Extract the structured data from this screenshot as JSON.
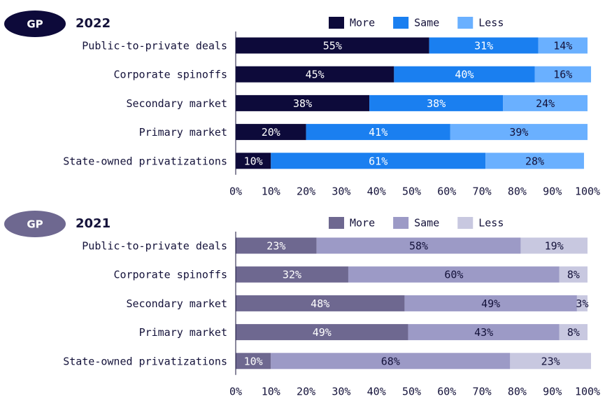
{
  "chart_data": [
    {
      "type": "stacked-bar-horizontal",
      "badge": "GP",
      "title": "2022",
      "badge_color": "#0d0a3a",
      "categories": [
        "Public-to-private deals",
        "Corporate spinoffs",
        "Secondary market",
        "Primary market",
        "State-owned privatizations"
      ],
      "series": [
        {
          "name": "More",
          "color": "#0d0a3a",
          "values": [
            55,
            45,
            38,
            20,
            10
          ],
          "value_labels": [
            "55%",
            "45%",
            "38%",
            "20%",
            "10%"
          ]
        },
        {
          "name": "Same",
          "color": "#1a7ff0",
          "values": [
            31,
            40,
            38,
            41,
            61
          ],
          "value_labels": [
            "31%",
            "40%",
            "38%",
            "41%",
            "61%"
          ]
        },
        {
          "name": "Less",
          "color": "#6ab0ff",
          "values": [
            14,
            16,
            24,
            39,
            28
          ],
          "value_labels": [
            "14%",
            "16%",
            "24%",
            "39%",
            "28%"
          ]
        }
      ],
      "xlim": [
        0,
        100
      ],
      "xticks": [
        {
          "value": 0,
          "label": "0%"
        },
        {
          "value": 10,
          "label": "10%"
        },
        {
          "value": 20,
          "label": "20%"
        },
        {
          "value": 30,
          "label": "30%"
        },
        {
          "value": 40,
          "label": "40%"
        },
        {
          "value": 50,
          "label": "50%"
        },
        {
          "value": 60,
          "label": "60%"
        },
        {
          "value": 70,
          "label": "70%"
        },
        {
          "value": 80,
          "label": "80%"
        },
        {
          "value": 90,
          "label": "90%"
        },
        {
          "value": 100,
          "label": "100%"
        }
      ]
    },
    {
      "type": "stacked-bar-horizontal",
      "badge": "GP",
      "title": "2021",
      "badge_color": "#6e6890",
      "categories": [
        "Public-to-private deals",
        "Corporate spinoffs",
        "Secondary market",
        "Primary market",
        "State-owned privatizations"
      ],
      "series": [
        {
          "name": "More",
          "color": "#6e6890",
          "values": [
            23,
            32,
            48,
            49,
            10
          ],
          "value_labels": [
            "23%",
            "32%",
            "48%",
            "49%",
            "10%"
          ]
        },
        {
          "name": "Same",
          "color": "#9c9ac6",
          "values": [
            58,
            60,
            49,
            43,
            68
          ],
          "value_labels": [
            "58%",
            "60%",
            "49%",
            "43%",
            "68%"
          ]
        },
        {
          "name": "Less",
          "color": "#c8c8e0",
          "values": [
            19,
            8,
            3,
            8,
            23
          ],
          "value_labels": [
            "19%",
            "8%",
            "3%",
            "8%",
            "23%"
          ]
        }
      ],
      "xlim": [
        0,
        100
      ],
      "xticks": [
        {
          "value": 0,
          "label": "0%"
        },
        {
          "value": 10,
          "label": "10%"
        },
        {
          "value": 20,
          "label": "20%"
        },
        {
          "value": 30,
          "label": "30%"
        },
        {
          "value": 40,
          "label": "40%"
        },
        {
          "value": 50,
          "label": "50%"
        },
        {
          "value": 60,
          "label": "60%"
        },
        {
          "value": 70,
          "label": "70%"
        },
        {
          "value": 80,
          "label": "80%"
        },
        {
          "value": 90,
          "label": "90%"
        },
        {
          "value": 100,
          "label": "100%"
        }
      ]
    }
  ]
}
